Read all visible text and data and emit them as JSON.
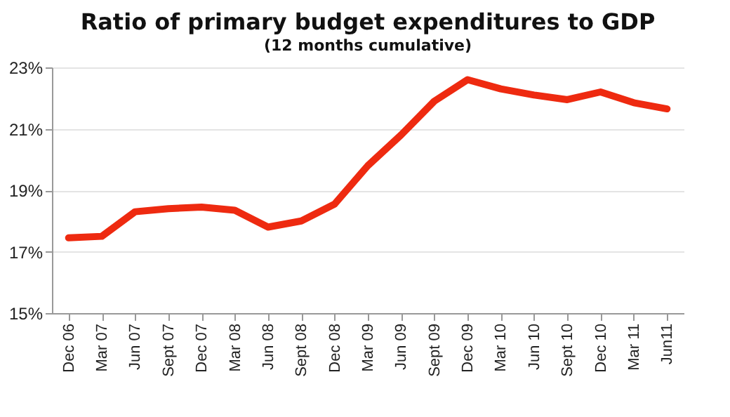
{
  "chart_data": {
    "type": "line",
    "title": "Ratio of primary budget expenditures to GDP",
    "subtitle": "(12 months cumulative)",
    "categories": [
      "Dec 06",
      "Mar 07",
      "Jun 07",
      "Sept 07",
      "Dec 07",
      "Mar 08",
      "Jun 08",
      "Sept 08",
      "Dec 08",
      "Mar 09",
      "Jun 09",
      "Sept 09",
      "Dec 09",
      "Mar 10",
      "Jun 10",
      "Sept 10",
      "Dec 10",
      "Mar 11",
      "Jun11"
    ],
    "series": [
      {
        "color": "#ee2a10",
        "values": [
          17.45,
          17.5,
          18.3,
          18.4,
          18.45,
          18.35,
          17.8,
          18.0,
          18.55,
          19.8,
          20.8,
          21.9,
          22.6,
          22.3,
          22.1,
          21.95,
          22.2,
          21.85,
          21.65
        ]
      }
    ],
    "ylim": [
      15,
      23
    ],
    "yticks": [
      {
        "value": 15,
        "label": "15%"
      },
      {
        "value": 17,
        "label": "17%"
      },
      {
        "value": 19,
        "label": "19%"
      },
      {
        "value": 21,
        "label": "21%"
      },
      {
        "value": 23,
        "label": "23%"
      }
    ],
    "grid": "y",
    "marker": "none",
    "line_style": "solid"
  }
}
